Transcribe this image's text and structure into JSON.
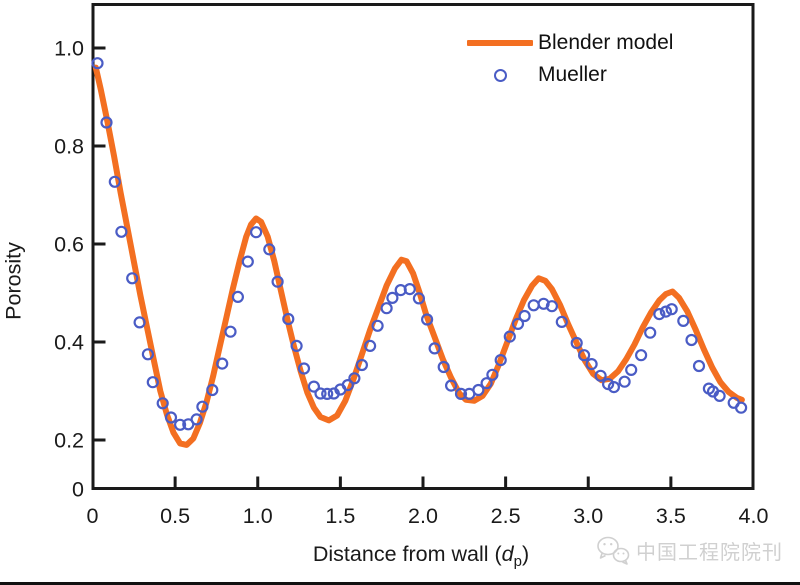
{
  "figure": {
    "watermark_text": "中国工程院院刊",
    "watermark_color": "#d0d0d0",
    "bottom_bar_color": "#111111"
  },
  "chart_data": {
    "type": "line",
    "title": "",
    "xlabel": "Distance from wall (d_p)",
    "xlabel_parts": {
      "prefix": "Distance from wall (",
      "var": "d",
      "sub": "p",
      "suffix": ")"
    },
    "ylabel": "Porosity",
    "xlim": [
      0,
      4.0
    ],
    "ylim": [
      0,
      1.05
    ],
    "grid": false,
    "legend_position": "top-center-inside",
    "axis_color": "#1a1a1a",
    "y_zero_at_corner": true,
    "x_ticks": [
      {
        "label": "0",
        "value": 0
      },
      {
        "label": "0.5",
        "value": 0.5
      },
      {
        "label": "1.0",
        "value": 1.0
      },
      {
        "label": "1.5",
        "value": 1.5
      },
      {
        "label": "2.0",
        "value": 2.0
      },
      {
        "label": "2.5",
        "value": 2.5
      },
      {
        "label": "3.0",
        "value": 3.0
      },
      {
        "label": "3.5",
        "value": 3.5
      },
      {
        "label": "4.0",
        "value": 4.0
      }
    ],
    "y_ticks": [
      {
        "label": "1.0",
        "value": 1.0
      },
      {
        "label": "0.8",
        "value": 0.8
      },
      {
        "label": "0.6",
        "value": 0.6
      },
      {
        "label": "0.4",
        "value": 0.4
      },
      {
        "label": "0.2",
        "value": 0.2
      },
      {
        "label": "0",
        "value": 0
      }
    ],
    "series": [
      {
        "name": "Blender model",
        "kind": "line",
        "color": "#f36f21",
        "points": [
          [
            0.02,
            0.96
          ],
          [
            0.05,
            0.915
          ],
          [
            0.09,
            0.85
          ],
          [
            0.13,
            0.78
          ],
          [
            0.17,
            0.705
          ],
          [
            0.21,
            0.635
          ],
          [
            0.25,
            0.565
          ],
          [
            0.29,
            0.495
          ],
          [
            0.33,
            0.43
          ],
          [
            0.37,
            0.365
          ],
          [
            0.41,
            0.3
          ],
          [
            0.45,
            0.252
          ],
          [
            0.49,
            0.215
          ],
          [
            0.53,
            0.193
          ],
          [
            0.57,
            0.19
          ],
          [
            0.61,
            0.203
          ],
          [
            0.65,
            0.235
          ],
          [
            0.69,
            0.277
          ],
          [
            0.73,
            0.33
          ],
          [
            0.77,
            0.39
          ],
          [
            0.81,
            0.45
          ],
          [
            0.85,
            0.51
          ],
          [
            0.89,
            0.565
          ],
          [
            0.93,
            0.615
          ],
          [
            0.96,
            0.64
          ],
          [
            0.99,
            0.652
          ],
          [
            1.02,
            0.645
          ],
          [
            1.06,
            0.615
          ],
          [
            1.1,
            0.565
          ],
          [
            1.14,
            0.505
          ],
          [
            1.18,
            0.445
          ],
          [
            1.22,
            0.39
          ],
          [
            1.26,
            0.34
          ],
          [
            1.3,
            0.297
          ],
          [
            1.34,
            0.266
          ],
          [
            1.38,
            0.247
          ],
          [
            1.43,
            0.24
          ],
          [
            1.48,
            0.25
          ],
          [
            1.53,
            0.28
          ],
          [
            1.58,
            0.325
          ],
          [
            1.63,
            0.375
          ],
          [
            1.68,
            0.425
          ],
          [
            1.73,
            0.47
          ],
          [
            1.78,
            0.515
          ],
          [
            1.83,
            0.55
          ],
          [
            1.87,
            0.568
          ],
          [
            1.9,
            0.565
          ],
          [
            1.94,
            0.54
          ],
          [
            1.98,
            0.5
          ],
          [
            2.02,
            0.455
          ],
          [
            2.07,
            0.41
          ],
          [
            2.12,
            0.365
          ],
          [
            2.17,
            0.327
          ],
          [
            2.22,
            0.295
          ],
          [
            2.26,
            0.282
          ],
          [
            2.31,
            0.28
          ],
          [
            2.36,
            0.29
          ],
          [
            2.41,
            0.315
          ],
          [
            2.46,
            0.355
          ],
          [
            2.51,
            0.4
          ],
          [
            2.56,
            0.445
          ],
          [
            2.61,
            0.485
          ],
          [
            2.66,
            0.515
          ],
          [
            2.7,
            0.53
          ],
          [
            2.74,
            0.525
          ],
          [
            2.78,
            0.508
          ],
          [
            2.83,
            0.475
          ],
          [
            2.88,
            0.435
          ],
          [
            2.93,
            0.398
          ],
          [
            2.98,
            0.362
          ],
          [
            3.03,
            0.335
          ],
          [
            3.08,
            0.322
          ],
          [
            3.13,
            0.325
          ],
          [
            3.18,
            0.34
          ],
          [
            3.23,
            0.365
          ],
          [
            3.28,
            0.395
          ],
          [
            3.33,
            0.43
          ],
          [
            3.38,
            0.46
          ],
          [
            3.43,
            0.485
          ],
          [
            3.47,
            0.498
          ],
          [
            3.51,
            0.503
          ],
          [
            3.55,
            0.49
          ],
          [
            3.6,
            0.462
          ],
          [
            3.65,
            0.425
          ],
          [
            3.7,
            0.385
          ],
          [
            3.75,
            0.348
          ],
          [
            3.8,
            0.318
          ],
          [
            3.85,
            0.298
          ],
          [
            3.9,
            0.286
          ],
          [
            3.93,
            0.282
          ]
        ]
      },
      {
        "name": "Mueller",
        "kind": "scatter",
        "color": "#4a5cc5",
        "points": [
          [
            0.03,
            0.969
          ],
          [
            0.085,
            0.848
          ],
          [
            0.135,
            0.727
          ],
          [
            0.175,
            0.625
          ],
          [
            0.24,
            0.53
          ],
          [
            0.285,
            0.44
          ],
          [
            0.335,
            0.375
          ],
          [
            0.365,
            0.318
          ],
          [
            0.425,
            0.275
          ],
          [
            0.475,
            0.246
          ],
          [
            0.53,
            0.231
          ],
          [
            0.58,
            0.232
          ],
          [
            0.63,
            0.242
          ],
          [
            0.665,
            0.268
          ],
          [
            0.725,
            0.302
          ],
          [
            0.785,
            0.356
          ],
          [
            0.835,
            0.421
          ],
          [
            0.88,
            0.492
          ],
          [
            0.94,
            0.564
          ],
          [
            0.99,
            0.624
          ],
          [
            1.07,
            0.589
          ],
          [
            1.12,
            0.523
          ],
          [
            1.185,
            0.447
          ],
          [
            1.235,
            0.392
          ],
          [
            1.28,
            0.346
          ],
          [
            1.34,
            0.309
          ],
          [
            1.38,
            0.295
          ],
          [
            1.42,
            0.294
          ],
          [
            1.46,
            0.295
          ],
          [
            1.5,
            0.303
          ],
          [
            1.545,
            0.312
          ],
          [
            1.585,
            0.326
          ],
          [
            1.63,
            0.353
          ],
          [
            1.68,
            0.392
          ],
          [
            1.725,
            0.433
          ],
          [
            1.78,
            0.469
          ],
          [
            1.815,
            0.49
          ],
          [
            1.865,
            0.506
          ],
          [
            1.92,
            0.508
          ],
          [
            1.975,
            0.489
          ],
          [
            2.025,
            0.446
          ],
          [
            2.07,
            0.387
          ],
          [
            2.125,
            0.349
          ],
          [
            2.17,
            0.311
          ],
          [
            2.23,
            0.294
          ],
          [
            2.28,
            0.294
          ],
          [
            2.335,
            0.302
          ],
          [
            2.385,
            0.316
          ],
          [
            2.42,
            0.333
          ],
          [
            2.47,
            0.363
          ],
          [
            2.525,
            0.411
          ],
          [
            2.575,
            0.437
          ],
          [
            2.615,
            0.453
          ],
          [
            2.67,
            0.475
          ],
          [
            2.73,
            0.478
          ],
          [
            2.78,
            0.473
          ],
          [
            2.84,
            0.441
          ],
          [
            2.93,
            0.398
          ],
          [
            2.975,
            0.373
          ],
          [
            3.02,
            0.355
          ],
          [
            3.075,
            0.331
          ],
          [
            3.12,
            0.314
          ],
          [
            3.155,
            0.308
          ],
          [
            3.22,
            0.319
          ],
          [
            3.26,
            0.343
          ],
          [
            3.32,
            0.373
          ],
          [
            3.375,
            0.419
          ],
          [
            3.43,
            0.457
          ],
          [
            3.47,
            0.462
          ],
          [
            3.505,
            0.467
          ],
          [
            3.575,
            0.443
          ],
          [
            3.625,
            0.404
          ],
          [
            3.67,
            0.351
          ],
          [
            3.73,
            0.305
          ],
          [
            3.755,
            0.299
          ],
          [
            3.795,
            0.29
          ],
          [
            3.88,
            0.276
          ],
          [
            3.925,
            0.266
          ]
        ]
      }
    ]
  }
}
